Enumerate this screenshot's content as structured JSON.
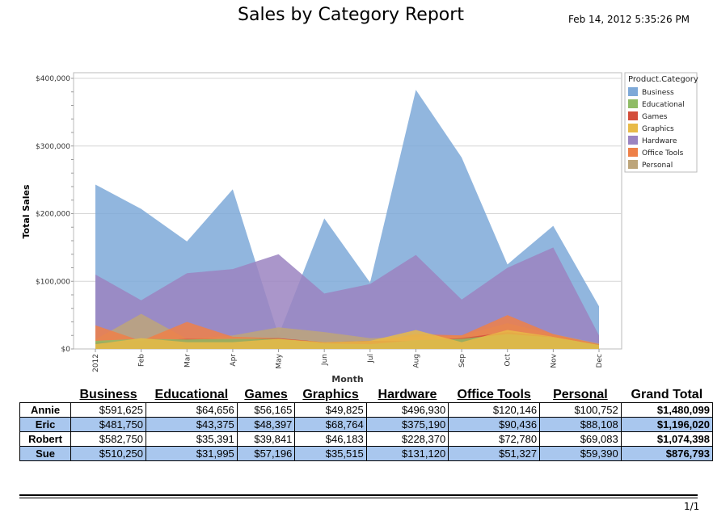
{
  "report": {
    "title": "Sales by Category Report",
    "date": "Feb 14, 2012 5:35:26 PM",
    "page": "1/1"
  },
  "chart_data": {
    "type": "area",
    "title": "",
    "xlabel": "Month",
    "ylabel": "Total Sales",
    "ylim": [
      0,
      400000
    ],
    "y_ticks": [
      "$0",
      "$100,000",
      "$200,000",
      "$300,000",
      "$400,000"
    ],
    "y_tick_values": [
      0,
      100000,
      200000,
      300000,
      400000
    ],
    "categories": [
      "2012",
      "Feb",
      "Mar",
      "Apr",
      "May",
      "Jun",
      "Jul",
      "Aug",
      "Sep",
      "Oct",
      "Nov",
      "Dec"
    ],
    "legend_title": "Product.Category",
    "legend_position": "right",
    "grid": true,
    "series": [
      {
        "name": "Business",
        "color": "#7ea9d8",
        "values": [
          243000,
          207000,
          159000,
          236000,
          20000,
          193000,
          98000,
          383000,
          283000,
          125000,
          182000,
          63000
        ]
      },
      {
        "name": "Educational",
        "color": "#8fbc66",
        "values": [
          12000,
          15000,
          14000,
          15000,
          15000,
          8000,
          7000,
          13000,
          15000,
          22000,
          17000,
          6000
        ]
      },
      {
        "name": "Games",
        "color": "#d34e3b",
        "values": [
          10000,
          12000,
          15000,
          14000,
          16000,
          10000,
          12000,
          12000,
          16000,
          25000,
          18000,
          6000
        ]
      },
      {
        "name": "Graphics",
        "color": "#e8ba48",
        "values": [
          7000,
          16000,
          10000,
          10000,
          15000,
          10000,
          12000,
          28000,
          10000,
          28000,
          18000,
          6000
        ]
      },
      {
        "name": "Hardware",
        "color": "#9b84c1",
        "values": [
          110000,
          72000,
          112000,
          118000,
          140000,
          82000,
          96000,
          139000,
          73000,
          120000,
          150000,
          20000
        ]
      },
      {
        "name": "Office Tools",
        "color": "#ee8048",
        "values": [
          35000,
          12000,
          40000,
          18000,
          16000,
          8000,
          10000,
          22000,
          20000,
          50000,
          22000,
          7000
        ]
      },
      {
        "name": "Personal",
        "color": "#bda57a",
        "values": [
          14000,
          52000,
          15000,
          20000,
          32000,
          25000,
          16000,
          18000,
          20000,
          38000,
          22000,
          8000
        ]
      }
    ]
  },
  "table": {
    "headers": [
      "",
      "Business",
      "Educational",
      "Games",
      "Graphics",
      "Hardware",
      "Office Tools",
      "Personal",
      "Grand Total"
    ],
    "rows": [
      {
        "name": "Annie",
        "cells": [
          "$591,625",
          "$64,656",
          "$56,165",
          "$49,825",
          "$496,930",
          "$120,146",
          "$100,752"
        ],
        "total": "$1,480,099"
      },
      {
        "name": "Eric",
        "cells": [
          "$481,750",
          "$43,375",
          "$48,397",
          "$68,764",
          "$375,190",
          "$90,436",
          "$88,108"
        ],
        "total": "$1,196,020"
      },
      {
        "name": "Robert",
        "cells": [
          "$582,750",
          "$35,391",
          "$39,841",
          "$46,183",
          "$228,370",
          "$72,780",
          "$69,083"
        ],
        "total": "$1,074,398"
      },
      {
        "name": "Sue",
        "cells": [
          "$510,250",
          "$31,995",
          "$57,196",
          "$35,515",
          "$131,120",
          "$51,327",
          "$59,390"
        ],
        "total": "$876,793"
      }
    ]
  }
}
